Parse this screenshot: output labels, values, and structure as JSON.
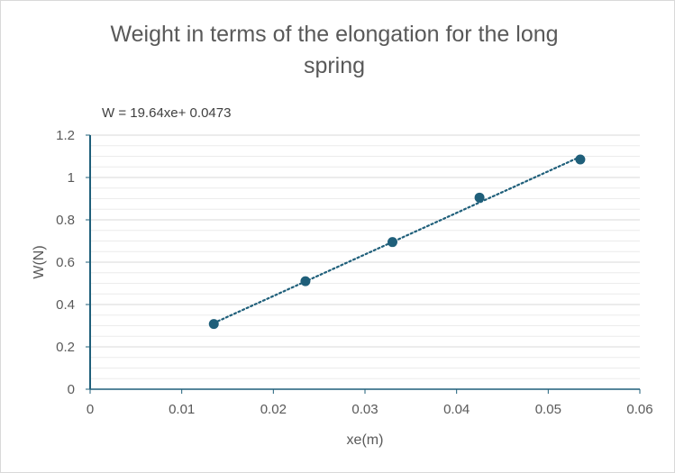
{
  "chart_data": {
    "type": "scatter",
    "title_lines": [
      "Weight in terms of the elongation for the long",
      "spring"
    ],
    "xlabel": "xe(m)",
    "ylabel": "W(N)",
    "xlim": [
      0,
      0.06
    ],
    "ylim": [
      0,
      1.2
    ],
    "x_major_step": 0.01,
    "y_major_step": 0.2,
    "y_minor_step": 0.05,
    "x_tick_labels": [
      "0",
      "0.01",
      "0.02",
      "0.03",
      "0.04",
      "0.05",
      "0.06"
    ],
    "y_tick_labels": [
      "0",
      "0.2",
      "0.4",
      "0.6",
      "0.8",
      "1",
      "1.2"
    ],
    "grid": true,
    "series": [
      {
        "x": [
          0.0135,
          0.0235,
          0.033,
          0.0425,
          0.0535
        ],
        "y": [
          0.308,
          0.51,
          0.695,
          0.905,
          1.085
        ]
      }
    ],
    "trendline": {
      "type": "linear",
      "slope": 19.64,
      "intercept": 0.0473,
      "x_range": [
        0.0135,
        0.0535
      ],
      "equation_label": "W = 19.64xe+ 0.0473"
    },
    "colors": {
      "marker": "#1f5f7a",
      "trendline": "#1f5f7a",
      "major_grid": "#d9d9d9",
      "minor_grid": "#ececec",
      "axis": "#1f5f7a"
    }
  }
}
